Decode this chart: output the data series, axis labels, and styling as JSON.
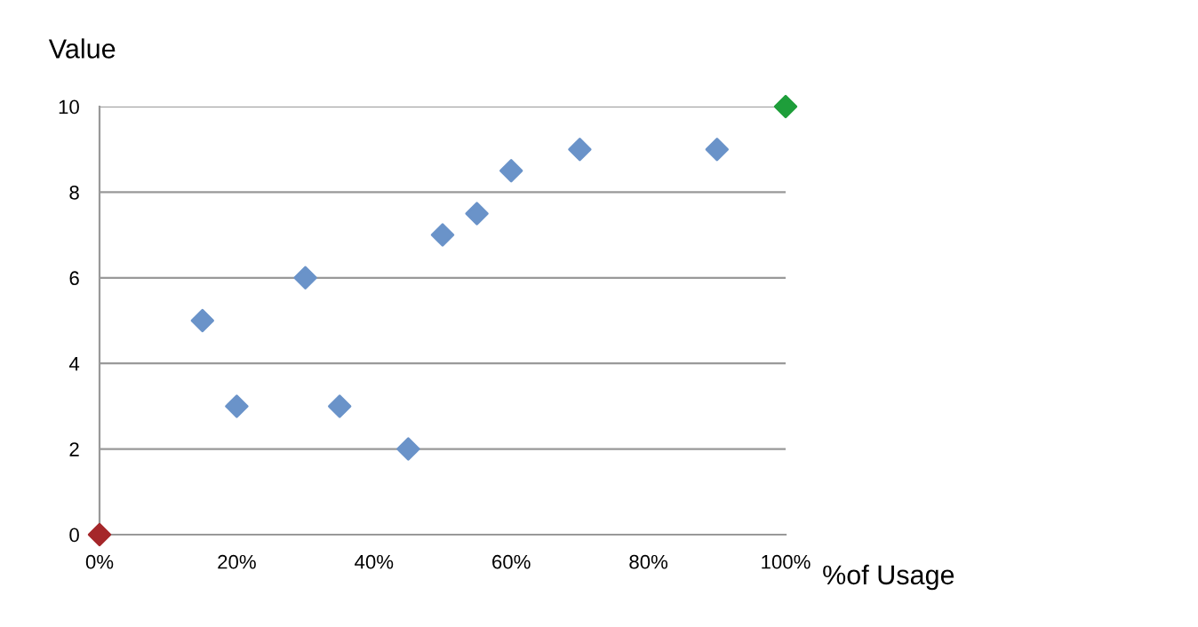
{
  "chart_data": {
    "type": "scatter",
    "xlabel": "%of Usage",
    "ylabel": "Value",
    "marker": "diamond",
    "grid": "y",
    "legend": false,
    "xlim": [
      0,
      100
    ],
    "ylim": [
      0,
      10
    ],
    "xticks": [
      {
        "value": 0,
        "label": "0%"
      },
      {
        "value": 20,
        "label": "20%"
      },
      {
        "value": 40,
        "label": "40%"
      },
      {
        "value": 60,
        "label": "60%"
      },
      {
        "value": 80,
        "label": "80%"
      },
      {
        "value": 100,
        "label": "100%"
      }
    ],
    "yticks": [
      0,
      2,
      4,
      6,
      8,
      10
    ],
    "series": [
      {
        "color": "#6a93c9",
        "x": [
          15,
          20,
          30,
          35,
          45,
          50,
          55,
          60,
          70,
          90
        ],
        "values": [
          5,
          3,
          6,
          3,
          2,
          7,
          7.5,
          8.5,
          9,
          9
        ]
      },
      {
        "color": "#a5272a",
        "x": [
          0
        ],
        "values": [
          0
        ]
      },
      {
        "color": "#1e9e3a",
        "x": [
          100
        ],
        "values": [
          10
        ]
      }
    ]
  }
}
